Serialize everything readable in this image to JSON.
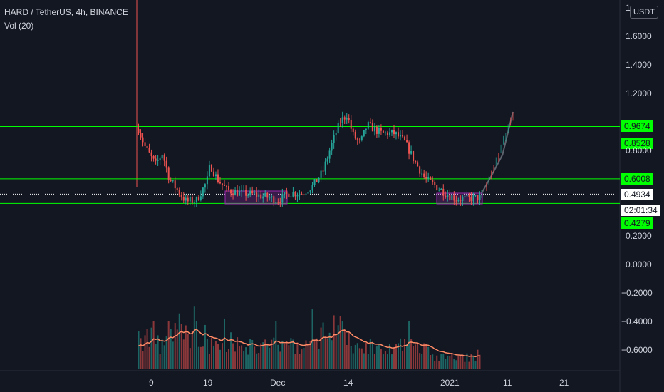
{
  "legend": {
    "symbol_line": "HARD / TetherUS, 4h, BINANCE",
    "indicator": "Vol (20)"
  },
  "currency_badge": "USDT",
  "price_axis": {
    "ticks": [
      "1.6000",
      "1.4000",
      "1.2000",
      "0.8000",
      "0.2000",
      "0.0000",
      "−0.2000",
      "−0.4000",
      "−0.6000"
    ],
    "top_partial": "1"
  },
  "time_axis": {
    "ticks": [
      "9",
      "19",
      "Dec",
      "14",
      "2021",
      "11",
      "21"
    ]
  },
  "levels": {
    "l1": "0.9674",
    "l2": "0.8528",
    "l3": "0.6008",
    "current": "0.4934",
    "countdown": "02:01:34",
    "l4": "0.4279"
  },
  "colors": {
    "background": "#131722",
    "up": "#26a69a",
    "down": "#ef5350",
    "level_line": "#00ff00",
    "range_box": "#9c27b0",
    "volume_ma": "#ff8a65"
  },
  "chart_data": {
    "type": "candlestick",
    "title": "HARD / TetherUS, 4h, BINANCE",
    "x": [
      "9",
      "19",
      "Dec",
      "14",
      "2021",
      "11",
      "21"
    ],
    "ylim": [
      -0.72,
      1.72
    ],
    "horizontal_levels": [
      0.9674,
      0.8528,
      0.6008,
      0.4279
    ],
    "current_price": 0.4934,
    "price_path": [
      [
        0,
        0.95
      ],
      [
        0.02,
        0.82
      ],
      [
        0.05,
        0.7
      ],
      [
        0.07,
        0.78
      ],
      [
        0.09,
        0.6
      ],
      [
        0.12,
        0.5
      ],
      [
        0.14,
        0.44
      ],
      [
        0.17,
        0.45
      ],
      [
        0.2,
        0.58
      ],
      [
        0.21,
        0.7
      ],
      [
        0.23,
        0.6
      ],
      [
        0.26,
        0.52
      ],
      [
        0.3,
        0.5
      ],
      [
        0.34,
        0.49
      ],
      [
        0.38,
        0.47
      ],
      [
        0.41,
        0.45
      ],
      [
        0.44,
        0.5
      ],
      [
        0.48,
        0.5
      ],
      [
        0.51,
        0.55
      ],
      [
        0.54,
        0.65
      ],
      [
        0.56,
        0.8
      ],
      [
        0.59,
        1.0
      ],
      [
        0.61,
        1.05
      ],
      [
        0.63,
        0.9
      ],
      [
        0.65,
        0.85
      ],
      [
        0.67,
        0.98
      ],
      [
        0.71,
        0.92
      ],
      [
        0.75,
        0.92
      ],
      [
        0.78,
        0.86
      ],
      [
        0.81,
        0.72
      ],
      [
        0.84,
        0.6
      ],
      [
        0.87,
        0.55
      ],
      [
        0.9,
        0.5
      ],
      [
        0.93,
        0.46
      ],
      [
        0.96,
        0.46
      ],
      [
        1.0,
        0.47
      ]
    ],
    "projection": [
      [
        0.47,
        0.5
      ],
      [
        0.62,
        0.63
      ],
      [
        0.78,
        0.77
      ],
      [
        1.0,
        1.07
      ]
    ]
  }
}
